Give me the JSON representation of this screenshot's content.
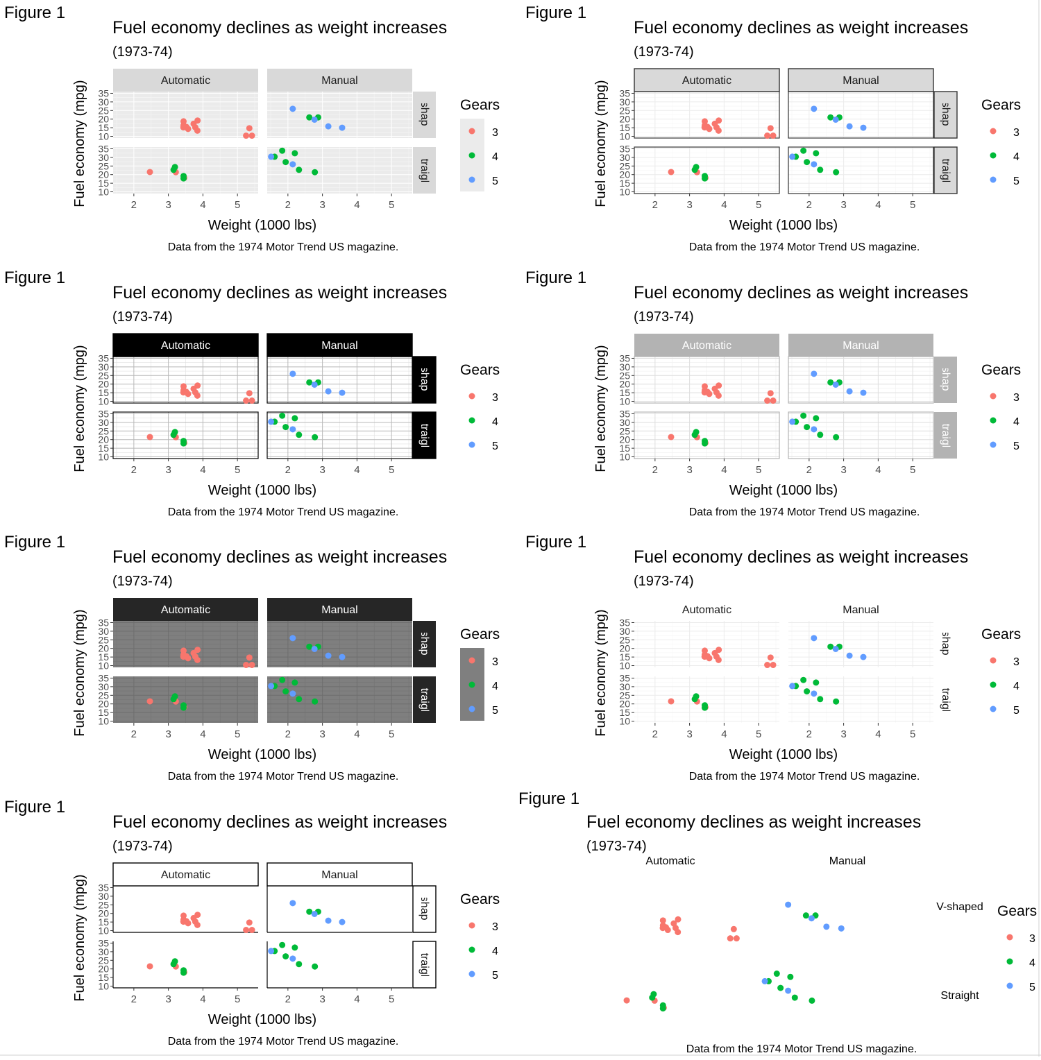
{
  "chart_data": {
    "type": "scatter",
    "figure_label": "Figure 1",
    "title": "Fuel economy declines as weight increases",
    "subtitle": "(1973-74)",
    "caption": "Data from the 1974 Motor Trend US magazine.",
    "xlabel": "Weight (1000 lbs)",
    "ylabel": "Fuel economy (mpg)",
    "xlim": [
      1.4,
      5.6
    ],
    "ylim": [
      9,
      36
    ],
    "x_ticks": [
      2,
      3,
      4,
      5
    ],
    "y_ticks": [
      10,
      15,
      20,
      25,
      30,
      35
    ],
    "col_strips": [
      "Automatic",
      "Manual"
    ],
    "row_strips": [
      "V-shaped",
      "Straight"
    ],
    "legend": {
      "title": "Gears",
      "entries": [
        {
          "label": "3",
          "color": "#F8766D"
        },
        {
          "label": "4",
          "color": "#00BA38"
        },
        {
          "label": "5",
          "color": "#619CFF"
        }
      ]
    },
    "facets": [
      {
        "row": "V-shaped",
        "col": "Automatic",
        "points": [
          {
            "wt": 3.44,
            "mpg": 18.7,
            "gear": "3"
          },
          {
            "wt": 3.57,
            "mpg": 14.3,
            "gear": "3"
          },
          {
            "wt": 3.44,
            "mpg": 16.4,
            "gear": "3"
          },
          {
            "wt": 3.73,
            "mpg": 17.3,
            "gear": "3"
          },
          {
            "wt": 3.78,
            "mpg": 15.2,
            "gear": "3"
          },
          {
            "wt": 5.25,
            "mpg": 10.4,
            "gear": "3"
          },
          {
            "wt": 5.42,
            "mpg": 10.4,
            "gear": "3"
          },
          {
            "wt": 5.345,
            "mpg": 14.7,
            "gear": "3"
          },
          {
            "wt": 3.52,
            "mpg": 15.5,
            "gear": "3"
          },
          {
            "wt": 3.435,
            "mpg": 15.2,
            "gear": "3"
          },
          {
            "wt": 3.84,
            "mpg": 13.3,
            "gear": "3"
          },
          {
            "wt": 3.845,
            "mpg": 19.2,
            "gear": "3"
          }
        ]
      },
      {
        "row": "V-shaped",
        "col": "Manual",
        "points": [
          {
            "wt": 2.62,
            "mpg": 21.0,
            "gear": "4"
          },
          {
            "wt": 2.875,
            "mpg": 21.0,
            "gear": "4"
          },
          {
            "wt": 2.14,
            "mpg": 26.0,
            "gear": "5"
          },
          {
            "wt": 3.17,
            "mpg": 15.8,
            "gear": "5"
          },
          {
            "wt": 2.77,
            "mpg": 19.7,
            "gear": "5"
          },
          {
            "wt": 3.57,
            "mpg": 15.0,
            "gear": "5"
          }
        ]
      },
      {
        "row": "Straight",
        "col": "Automatic",
        "points": [
          {
            "wt": 3.215,
            "mpg": 21.4,
            "gear": "3"
          },
          {
            "wt": 3.46,
            "mpg": 18.1,
            "gear": "3"
          },
          {
            "wt": 2.465,
            "mpg": 21.5,
            "gear": "3"
          },
          {
            "wt": 3.19,
            "mpg": 24.4,
            "gear": "4"
          },
          {
            "wt": 3.15,
            "mpg": 22.8,
            "gear": "4"
          },
          {
            "wt": 3.44,
            "mpg": 19.2,
            "gear": "4"
          },
          {
            "wt": 3.44,
            "mpg": 17.8,
            "gear": "4"
          }
        ]
      },
      {
        "row": "Straight",
        "col": "Manual",
        "points": [
          {
            "wt": 2.32,
            "mpg": 22.8,
            "gear": "4"
          },
          {
            "wt": 2.2,
            "mpg": 32.4,
            "gear": "4"
          },
          {
            "wt": 1.615,
            "mpg": 30.4,
            "gear": "4"
          },
          {
            "wt": 1.835,
            "mpg": 33.9,
            "gear": "4"
          },
          {
            "wt": 1.935,
            "mpg": 27.3,
            "gear": "4"
          },
          {
            "wt": 2.78,
            "mpg": 21.4,
            "gear": "4"
          },
          {
            "wt": 2.14,
            "mpg": 26.0,
            "gear": "5"
          },
          {
            "wt": 1.513,
            "mpg": 30.4,
            "gear": "5"
          }
        ]
      }
    ]
  },
  "variants": [
    {
      "id": "gray",
      "strip_fill": "#D9D9D9",
      "strip_stroke": "none",
      "strip_text": "#1A1A1A",
      "panel_bg": "#EBEBEB",
      "panel_border": "none",
      "grid_major": "#FFFFFF",
      "grid_minor": "#F5F5F5",
      "key_bg": "#EBEBEB",
      "show_axes": true
    },
    {
      "id": "bw",
      "strip_fill": "#D9D9D9",
      "strip_stroke": "#333333",
      "strip_text": "#1A1A1A",
      "panel_bg": "#FFFFFF",
      "panel_border": "#333333",
      "grid_major": "#EBEBEB",
      "grid_minor": "#F5F5F5",
      "key_bg": "#FFFFFF",
      "show_axes": true
    },
    {
      "id": "linedraw",
      "strip_fill": "#000000",
      "strip_stroke": "#000000",
      "strip_text": "#FFFFFF",
      "panel_bg": "#FFFFFF",
      "panel_border": "#000000",
      "grid_major": "#B8B8B8",
      "grid_minor": "#E0E0E0",
      "key_bg": "#FFFFFF",
      "show_axes": true
    },
    {
      "id": "light",
      "strip_fill": "#B3B3B3",
      "strip_stroke": "none",
      "strip_text": "#FFFFFF",
      "panel_bg": "#FFFFFF",
      "panel_border": "#B3B3B3",
      "grid_major": "#DEDEDE",
      "grid_minor": "#EFEFEF",
      "key_bg": "#FFFFFF",
      "show_axes": true
    },
    {
      "id": "dark",
      "strip_fill": "#262626",
      "strip_stroke": "none",
      "strip_text": "#FFFFFF",
      "panel_bg": "#7F7F7F",
      "panel_border": "none",
      "grid_major": "#6E6E6E",
      "grid_minor": "#747474",
      "key_bg": "#7F7F7F",
      "show_axes": true
    },
    {
      "id": "minimal",
      "strip_fill": "none",
      "strip_stroke": "none",
      "strip_text": "#1A1A1A",
      "panel_bg": "#FFFFFF",
      "panel_border": "none",
      "grid_major": "#EBEBEB",
      "grid_minor": "#F5F5F5",
      "key_bg": "#FFFFFF",
      "show_axes": true
    },
    {
      "id": "classic",
      "strip_fill": "#FFFFFF",
      "strip_stroke": "#000000",
      "strip_text": "#1A1A1A",
      "panel_bg": "#FFFFFF",
      "panel_border": "none",
      "grid_major": "none",
      "grid_minor": "none",
      "key_bg": "#FFFFFF",
      "show_axes": true,
      "axis_lines": true
    },
    {
      "id": "void",
      "strip_fill": "none",
      "strip_stroke": "none",
      "strip_text": "#000000",
      "panel_bg": "none",
      "panel_border": "none",
      "grid_major": "none",
      "grid_minor": "none",
      "key_bg": "none",
      "show_axes": false
    }
  ]
}
